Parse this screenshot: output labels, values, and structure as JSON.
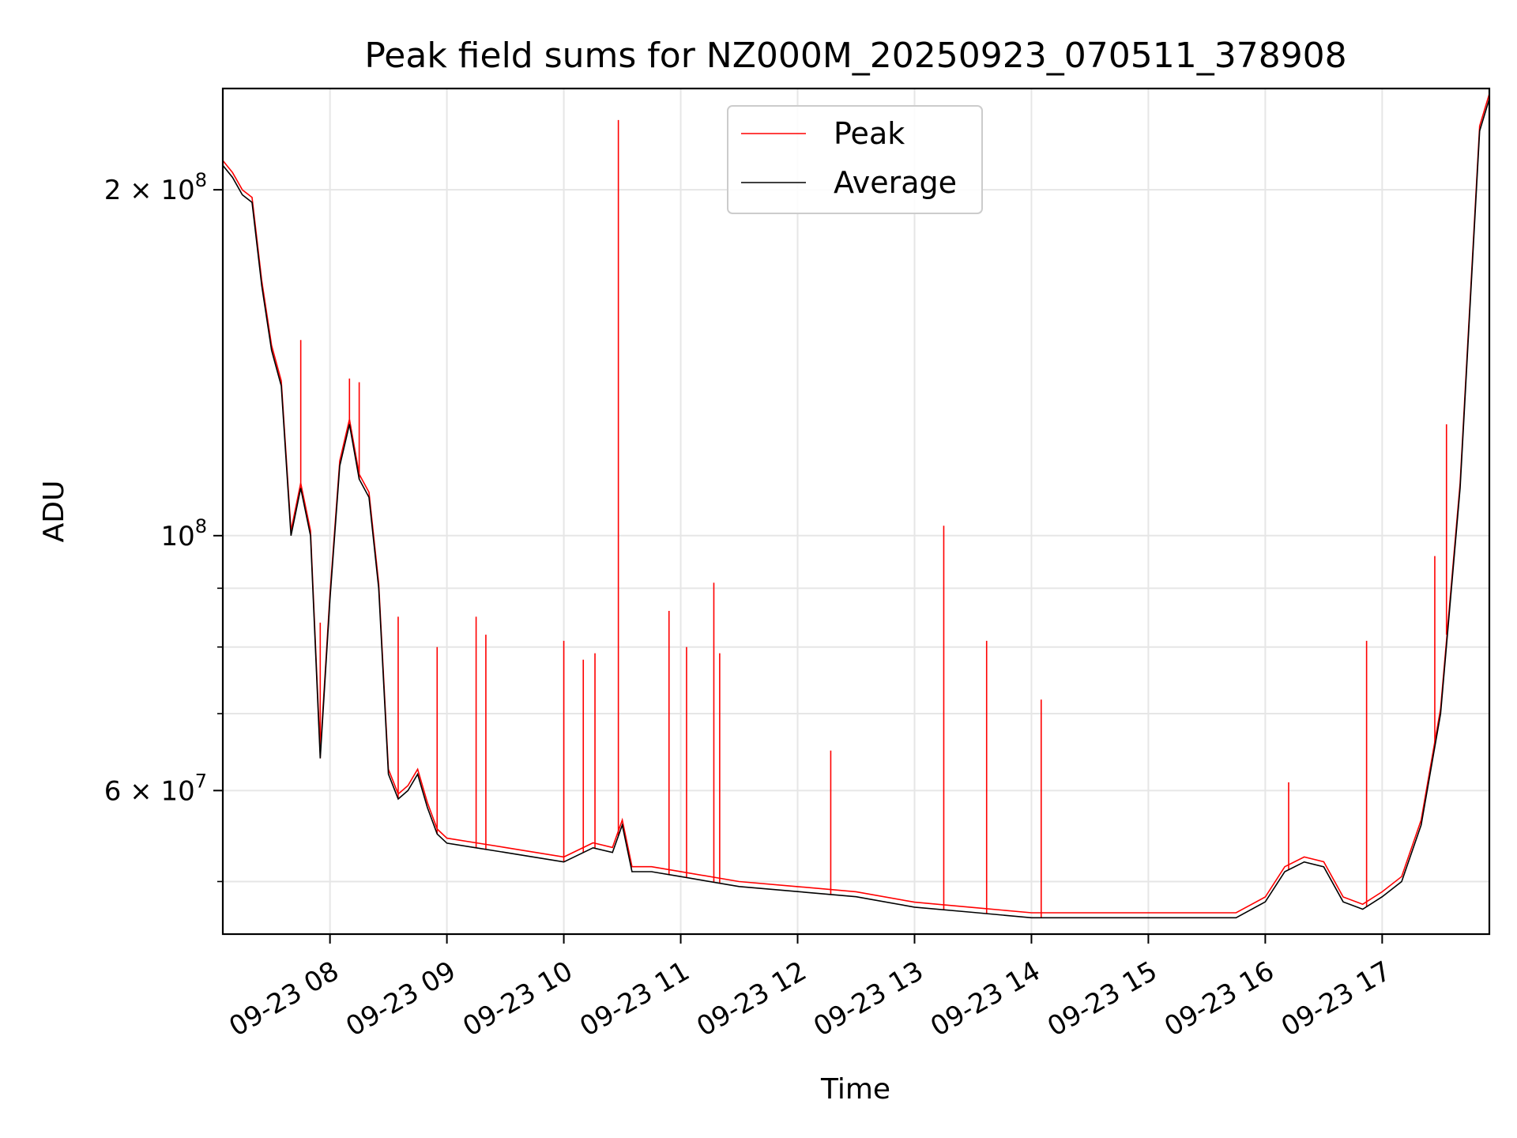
{
  "chart_data": {
    "type": "line",
    "title": "Peak field sums for NZ000M_20250923_070511_378908",
    "xlabel": "Time",
    "ylabel": "ADU",
    "yscale": "log",
    "ylim": [
      45000000,
      245000000
    ],
    "xlim": [
      "2025-09-23 07:05",
      "2025-09-23 17:55"
    ],
    "grid": true,
    "legend_position": "upper center",
    "x_ticks": [
      "09-23 08",
      "09-23 09",
      "09-23 10",
      "09-23 11",
      "09-23 12",
      "09-23 13",
      "09-23 14",
      "09-23 15",
      "09-23 16",
      "09-23 17"
    ],
    "y_ticks": [
      "2×10^8",
      "10^8",
      "6×10^7"
    ],
    "colors": {
      "Peak": "#ff0000",
      "Average": "#000000"
    },
    "series": [
      {
        "name": "Average",
        "x": [
          "2025-09-23 07:05",
          "2025-09-23 07:10",
          "2025-09-23 07:15",
          "2025-09-23 07:20",
          "2025-09-23 07:25",
          "2025-09-23 07:30",
          "2025-09-23 07:35",
          "2025-09-23 07:40",
          "2025-09-23 07:45",
          "2025-09-23 07:50",
          "2025-09-23 07:55",
          "2025-09-23 08:00",
          "2025-09-23 08:05",
          "2025-09-23 08:10",
          "2025-09-23 08:15",
          "2025-09-23 08:20",
          "2025-09-23 08:25",
          "2025-09-23 08:30",
          "2025-09-23 08:35",
          "2025-09-23 08:40",
          "2025-09-23 08:45",
          "2025-09-23 08:50",
          "2025-09-23 08:55",
          "2025-09-23 09:00",
          "2025-09-23 09:15",
          "2025-09-23 09:30",
          "2025-09-23 09:45",
          "2025-09-23 10:00",
          "2025-09-23 10:15",
          "2025-09-23 10:25",
          "2025-09-23 10:30",
          "2025-09-23 10:35",
          "2025-09-23 10:45",
          "2025-09-23 11:00",
          "2025-09-23 11:30",
          "2025-09-23 12:00",
          "2025-09-23 12:30",
          "2025-09-23 13:00",
          "2025-09-23 13:30",
          "2025-09-23 14:00",
          "2025-09-23 14:30",
          "2025-09-23 15:00",
          "2025-09-23 15:30",
          "2025-09-23 15:45",
          "2025-09-23 16:00",
          "2025-09-23 16:10",
          "2025-09-23 16:20",
          "2025-09-23 16:30",
          "2025-09-23 16:40",
          "2025-09-23 16:50",
          "2025-09-23 17:00",
          "2025-09-23 17:10",
          "2025-09-23 17:20",
          "2025-09-23 17:30",
          "2025-09-23 17:40",
          "2025-09-23 17:50",
          "2025-09-23 17:55"
        ],
        "y": [
          210000000,
          205000000,
          198000000,
          195000000,
          165000000,
          145000000,
          135000000,
          100000000,
          110000000,
          100000000,
          64000000,
          88000000,
          115000000,
          125000000,
          112000000,
          108000000,
          90000000,
          62000000,
          59000000,
          60000000,
          62000000,
          58000000,
          55000000,
          54000000,
          53500000,
          53000000,
          52500000,
          52000000,
          53500000,
          53000000,
          56000000,
          51000000,
          51000000,
          50500000,
          49500000,
          49000000,
          48500000,
          47500000,
          47000000,
          46500000,
          46500000,
          46500000,
          46500000,
          46500000,
          48000000,
          51000000,
          52000000,
          51500000,
          48000000,
          47300000,
          48500000,
          50000000,
          56000000,
          70000000,
          110000000,
          225000000,
          240000000
        ]
      },
      {
        "name": "Peak",
        "spikes_x": [
          "2025-09-23 07:45",
          "2025-09-23 07:55",
          "2025-09-23 08:10",
          "2025-09-23 08:15",
          "2025-09-23 08:35",
          "2025-09-23 08:55",
          "2025-09-23 09:15",
          "2025-09-23 09:20",
          "2025-09-23 10:00",
          "2025-09-23 10:10",
          "2025-09-23 10:16",
          "2025-09-23 10:28",
          "2025-09-23 10:54",
          "2025-09-23 11:03",
          "2025-09-23 11:17",
          "2025-09-23 11:20",
          "2025-09-23 12:17",
          "2025-09-23 13:15",
          "2025-09-23 13:37",
          "2025-09-23 14:05",
          "2025-09-23 16:12",
          "2025-09-23 16:52",
          "2025-09-23 17:27",
          "2025-09-23 17:33"
        ],
        "spikes_y": [
          148000000,
          84000000,
          137000000,
          136000000,
          85000000,
          80000000,
          85000000,
          82000000,
          81000000,
          78000000,
          79000000,
          230000000,
          86000000,
          80000000,
          91000000,
          79000000,
          65000000,
          102000000,
          81000000,
          72000000,
          61000000,
          81000000,
          96000000,
          125000000
        ]
      }
    ]
  }
}
